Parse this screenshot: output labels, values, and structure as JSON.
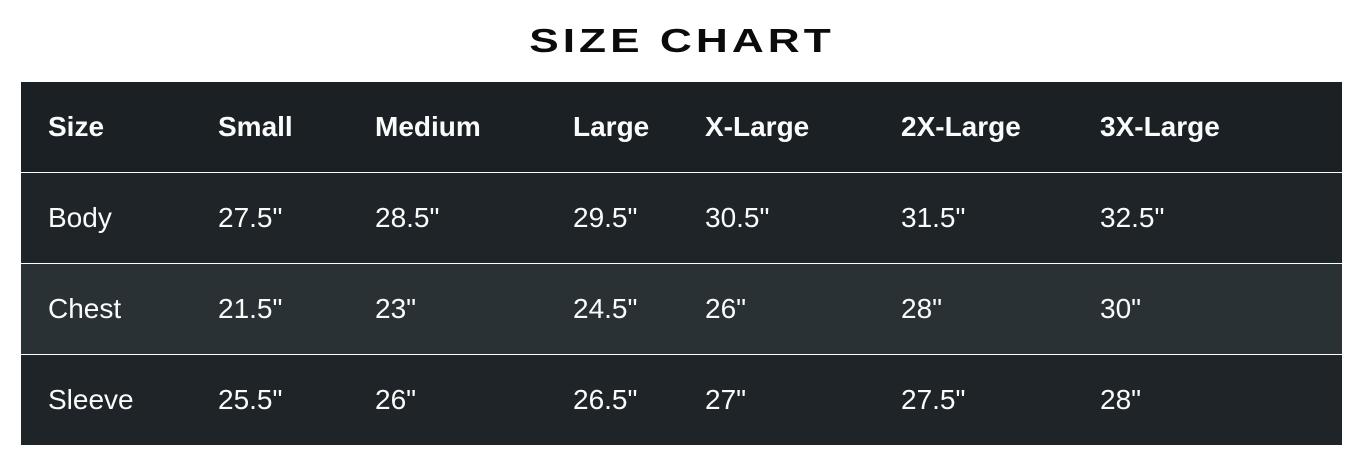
{
  "page": {
    "title": "SIZE CHART"
  },
  "size_chart": {
    "columns": [
      "Size",
      "Small",
      "Medium",
      "Large",
      "X-Large",
      "2X-Large",
      "3X-Large"
    ],
    "rows": [
      {
        "label": "Body",
        "values": [
          "27.5\"",
          "28.5\"",
          "29.5\"",
          "30.5\"",
          "31.5\"",
          "32.5\""
        ]
      },
      {
        "label": "Chest",
        "values": [
          "21.5\"",
          "23\"",
          "24.5\"",
          "26\"",
          "28\"",
          "30\""
        ]
      },
      {
        "label": "Sleeve",
        "values": [
          "25.5\"",
          "26\"",
          "26.5\"",
          "27\"",
          "27.5\"",
          "28\""
        ]
      }
    ],
    "colors": {
      "header_bg": "#1a2023",
      "row_odd_bg": "#1e2427",
      "row_even_bg": "#2a3134",
      "cell_text": "#fafbfb",
      "title": "#0b0b0b"
    }
  }
}
